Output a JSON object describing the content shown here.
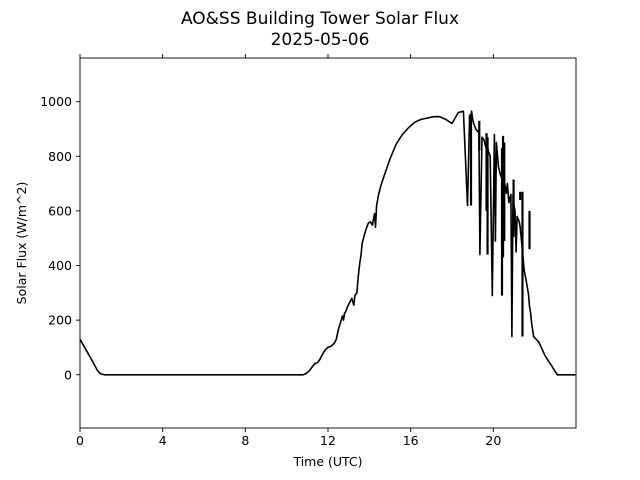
{
  "chart_data": {
    "type": "line",
    "title": "AO&SS Building Tower Solar Flux",
    "subtitle": "2025-05-06",
    "xlabel": "Time (UTC)",
    "ylabel": "Solar Flux (W/m^2)",
    "xlim": [
      0,
      24
    ],
    "ylim": [
      -195,
      1160
    ],
    "x_ticks": [
      0,
      4,
      8,
      12,
      16,
      20
    ],
    "x_tick_labels": [
      "0",
      "4",
      "8",
      "12",
      "16",
      "20"
    ],
    "y_ticks": [
      0,
      200,
      400,
      600,
      800,
      1000
    ],
    "y_tick_labels": [
      "0",
      "200",
      "400",
      "600",
      "800",
      "1000"
    ],
    "grid": false,
    "line_color": "#000000",
    "series": [
      {
        "x": [
          0,
          0.3,
          0.6,
          0.85,
          1.0,
          1.2,
          4,
          8,
          10.8,
          10.95,
          11.1,
          11.2,
          11.35,
          11.5,
          11.6,
          11.7,
          11.85,
          12.0,
          12.15,
          12.3,
          12.4,
          12.5,
          12.6,
          12.7,
          12.75,
          12.8,
          12.85,
          12.95,
          13.05,
          13.15,
          13.25,
          13.3,
          13.4,
          13.45,
          13.5,
          13.55,
          13.6,
          13.65,
          13.75,
          13.85,
          13.95,
          14.05,
          14.15,
          14.25,
          14.3,
          14.35,
          14.45,
          14.55,
          14.7,
          15.0,
          15.3,
          15.6,
          15.9,
          16.2,
          16.5,
          16.8,
          17.1,
          17.4,
          17.7,
          18.0,
          18.3,
          18.55,
          18.75,
          18.85,
          18.9,
          18.95,
          19.0,
          19.05,
          19.15,
          19.25,
          19.3,
          19.35,
          19.45,
          19.55,
          19.65,
          19.7,
          19.75,
          19.85,
          19.95,
          20.05,
          20.1,
          20.15,
          20.25,
          20.35,
          20.45,
          20.47,
          20.5,
          20.55,
          20.6,
          20.63,
          20.68,
          20.75,
          20.85,
          20.9,
          20.95,
          21.0,
          21.05,
          21.1,
          21.15,
          21.25,
          21.3,
          21.35,
          21.4,
          21.45,
          21.5,
          21.6,
          21.7,
          21.75,
          21.8,
          21.85,
          21.95,
          22.2,
          22.5,
          22.8,
          23.1,
          23.35,
          23.5,
          23.6,
          23.75,
          24.0
        ],
        "y": [
          130,
          90,
          50,
          15,
          3,
          0,
          0,
          0,
          0,
          5,
          15,
          25,
          40,
          45,
          55,
          70,
          90,
          100,
          105,
          115,
          130,
          165,
          190,
          215,
          200,
          225,
          230,
          250,
          265,
          280,
          255,
          290,
          300,
          350,
          385,
          415,
          440,
          480,
          510,
          535,
          555,
          560,
          548,
          590,
          540,
          620,
          660,
          690,
          725,
          790,
          845,
          880,
          905,
          925,
          935,
          940,
          945,
          945,
          935,
          920,
          960,
          965,
          620,
          950,
          940,
          965,
          935,
          920,
          900,
          890,
          895,
          440,
          870,
          860,
          830,
          850,
          820,
          800,
          290,
          880,
          490,
          850,
          760,
          730,
          715,
          500,
          710,
          700,
          680,
          665,
          700,
          630,
          660,
          140,
          660,
          620,
          600,
          450,
          580,
          560,
          540,
          500,
          460,
          420,
          380,
          340,
          295,
          250,
          230,
          190,
          140,
          120,
          70,
          35,
          0,
          0,
          0,
          0,
          0,
          0
        ],
        "spikes": [
          {
            "x": 18.92,
            "top": 955,
            "bottom": 620
          },
          {
            "x": 19.32,
            "top": 930,
            "bottom": 820
          },
          {
            "x": 19.67,
            "top": 885,
            "bottom": 600
          },
          {
            "x": 19.72,
            "top": 870,
            "bottom": 440
          },
          {
            "x": 20.42,
            "top": 830,
            "bottom": 290
          },
          {
            "x": 20.47,
            "top": 875,
            "bottom": 430
          },
          {
            "x": 20.53,
            "top": 850,
            "bottom": 490
          },
          {
            "x": 20.98,
            "top": 715,
            "bottom": 505
          },
          {
            "x": 21.3,
            "top": 670,
            "bottom": 640
          },
          {
            "x": 21.41,
            "top": 670,
            "bottom": 140
          },
          {
            "x": 21.75,
            "top": 600,
            "bottom": 460
          }
        ]
      }
    ]
  }
}
